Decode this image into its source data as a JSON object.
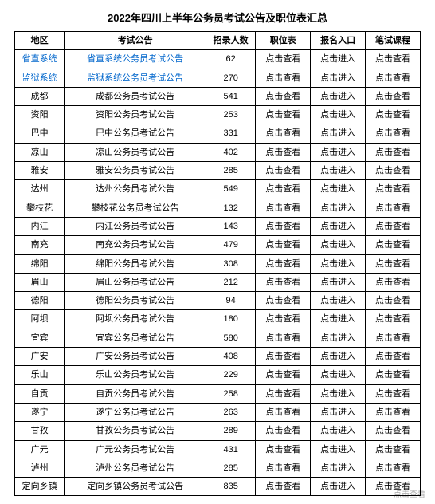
{
  "title": "2022年四川上半年公务员考试公告及职位表汇总",
  "columns": [
    "地区",
    "考试公告",
    "招录人数",
    "职位表",
    "报名入口",
    "笔试课程"
  ],
  "labels": {
    "view": "点击查看",
    "enter": "点击进入"
  },
  "colors": {
    "link": "#0066cc",
    "border": "#000000",
    "text": "#000000",
    "background": "#ffffff"
  },
  "rows": [
    {
      "region": "省直系统",
      "notice": "省直系统公务员考试公告",
      "count": 62,
      "region_blue": true,
      "notice_blue": true
    },
    {
      "region": "监狱系统",
      "notice": "监狱系统公务员考试公告",
      "count": 270,
      "region_blue": true,
      "notice_blue": true
    },
    {
      "region": "成都",
      "notice": "成都公务员考试公告",
      "count": 541,
      "region_blue": false,
      "notice_blue": false
    },
    {
      "region": "资阳",
      "notice": "资阳公务员考试公告",
      "count": 253,
      "region_blue": false,
      "notice_blue": false
    },
    {
      "region": "巴中",
      "notice": "巴中公务员考试公告",
      "count": 331,
      "region_blue": false,
      "notice_blue": false
    },
    {
      "region": "凉山",
      "notice": "凉山公务员考试公告",
      "count": 402,
      "region_blue": false,
      "notice_blue": false
    },
    {
      "region": "雅安",
      "notice": "雅安公务员考试公告",
      "count": 285,
      "region_blue": false,
      "notice_blue": false
    },
    {
      "region": "达州",
      "notice": "达州公务员考试公告",
      "count": 549,
      "region_blue": false,
      "notice_blue": false
    },
    {
      "region": "攀枝花",
      "notice": "攀枝花公务员考试公告",
      "count": 132,
      "region_blue": false,
      "notice_blue": false
    },
    {
      "region": "内江",
      "notice": "内江公务员考试公告",
      "count": 143,
      "region_blue": false,
      "notice_blue": false
    },
    {
      "region": "南充",
      "notice": "南充公务员考试公告",
      "count": 479,
      "region_blue": false,
      "notice_blue": false
    },
    {
      "region": "绵阳",
      "notice": "绵阳公务员考试公告",
      "count": 308,
      "region_blue": false,
      "notice_blue": false
    },
    {
      "region": "眉山",
      "notice": "眉山公务员考试公告",
      "count": 212,
      "region_blue": false,
      "notice_blue": false
    },
    {
      "region": "德阳",
      "notice": "德阳公务员考试公告",
      "count": 94,
      "region_blue": false,
      "notice_blue": false
    },
    {
      "region": "阿坝",
      "notice": "阿坝公务员考试公告",
      "count": 180,
      "region_blue": false,
      "notice_blue": false
    },
    {
      "region": "宜宾",
      "notice": "宜宾公务员考试公告",
      "count": 580,
      "region_blue": false,
      "notice_blue": false
    },
    {
      "region": "广安",
      "notice": "广安公务员考试公告",
      "count": 408,
      "region_blue": false,
      "notice_blue": false
    },
    {
      "region": "乐山",
      "notice": "乐山公务员考试公告",
      "count": 229,
      "region_blue": false,
      "notice_blue": false
    },
    {
      "region": "自贡",
      "notice": "自贡公务员考试公告",
      "count": 258,
      "region_blue": false,
      "notice_blue": false
    },
    {
      "region": "遂宁",
      "notice": "遂宁公务员考试公告",
      "count": 263,
      "region_blue": false,
      "notice_blue": false
    },
    {
      "region": "甘孜",
      "notice": "甘孜公务员考试公告",
      "count": 289,
      "region_blue": false,
      "notice_blue": false
    },
    {
      "region": "广元",
      "notice": "广元公务员考试公告",
      "count": 431,
      "region_blue": false,
      "notice_blue": false
    },
    {
      "region": "泸州",
      "notice": "泸州公务员考试公告",
      "count": 285,
      "region_blue": false,
      "notice_blue": false
    },
    {
      "region": "定向乡镇",
      "notice": "定向乡镇公务员考试公告",
      "count": 835,
      "region_blue": false,
      "notice_blue": false
    }
  ],
  "watermark": "点击查看"
}
